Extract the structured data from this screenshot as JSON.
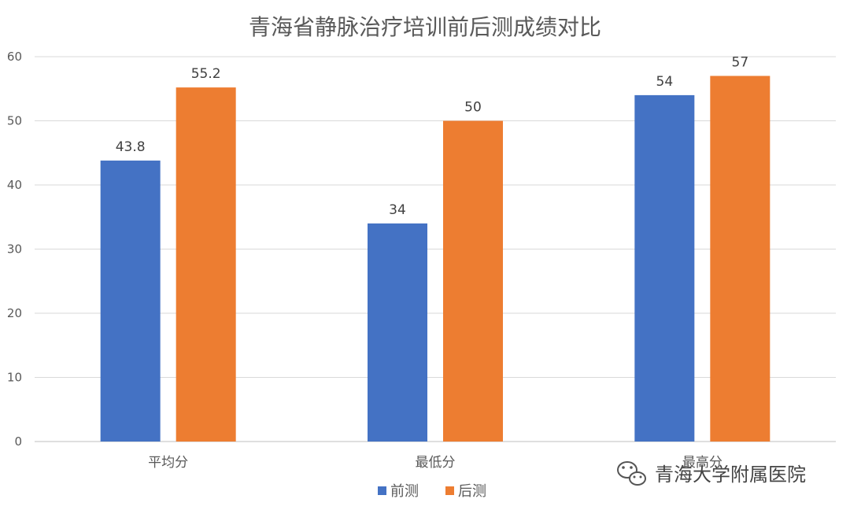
{
  "chart_data": {
    "type": "bar",
    "title": "青海省静脉治疗培训前后测成绩对比",
    "categories": [
      "平均分",
      "最低分",
      "最高分"
    ],
    "series": [
      {
        "name": "前测",
        "color": "#4472C4",
        "values": [
          43.8,
          34,
          54
        ]
      },
      {
        "name": "后测",
        "color": "#ED7D31",
        "values": [
          55.2,
          50,
          57
        ]
      }
    ],
    "ylim": [
      0,
      60
    ],
    "yticks": [
      0,
      10,
      20,
      30,
      40,
      50,
      60
    ],
    "grid": true,
    "legend": "bottom"
  },
  "watermark": {
    "text": "青海大学附属医院",
    "icon": "wechat-icon"
  }
}
